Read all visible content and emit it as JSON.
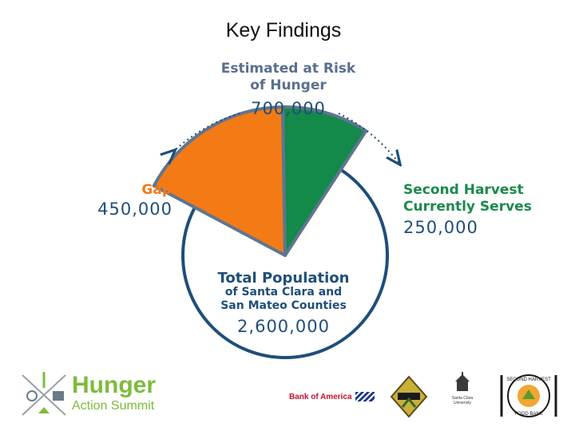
{
  "slide": {
    "title": "Key Findings"
  },
  "chart_data": {
    "type": "pie",
    "title": "Key Findings",
    "slices": [
      {
        "label": "Gap",
        "value": 450000,
        "color": "#f47a16"
      },
      {
        "label": "Second Harvest Currently Serves",
        "value": 250000,
        "color": "#13894a"
      }
    ],
    "total": {
      "label": "Total Population of Santa Clara and San Mateo Counties",
      "value": 2600000,
      "color": "#1f4e79"
    },
    "annotation": {
      "label": "Estimated at Risk of Hunger",
      "value": 700000
    }
  },
  "labels": {
    "risk_line1": "Estimated at Risk",
    "risk_line2": "of Hunger",
    "risk_value": "700,000",
    "gap_label": "Gap",
    "gap_value": "450,000",
    "serve_line1": "Second Harvest",
    "serve_line2": "Currently Serves",
    "serve_value": "250,000",
    "pop_line1": "Total Population",
    "pop_line2": "of Santa Clara and",
    "pop_line3": "San Mateo Counties",
    "pop_value": "2,600,000"
  },
  "footer": {
    "summit_word1": "Hunger",
    "summit_word2": "Action Summit",
    "bank_name": "Bank of America",
    "university_line1": "Santa Clara",
    "university_line2": "University",
    "food_bank_top": "SECOND HARVEST",
    "food_bank_bottom": "FOOD BANK"
  }
}
